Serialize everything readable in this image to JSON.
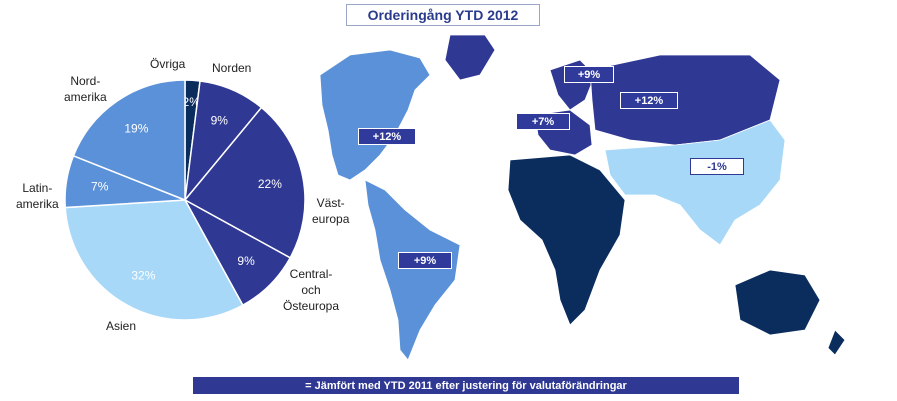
{
  "title": "Orderingång YTD 2012",
  "footer_note": "= Jämfört med YTD 2011 efter justering för valutaförändringar",
  "chart_data": {
    "type": "pie",
    "slices": [
      {
        "label": "Övriga",
        "value": 2,
        "display": "2%",
        "color": "#0b2d5e"
      },
      {
        "label": "Norden",
        "value": 9,
        "display": "9%",
        "color": "#2f3893"
      },
      {
        "label": "Väst-\neuropa",
        "value": 22,
        "display": "22%",
        "color": "#2f3893"
      },
      {
        "label": "Central-\noch\nÖsteuropa",
        "value": 9,
        "display": "9%",
        "color": "#2f3893"
      },
      {
        "label": "Asien",
        "value": 32,
        "display": "32%",
        "color": "#a7d8f8"
      },
      {
        "label": "Latin-\namerika",
        "value": 7,
        "display": "7%",
        "color": "#5a91d8"
      },
      {
        "label": "Nord-\namerika",
        "value": 19,
        "display": "19%",
        "color": "#5a91d8"
      }
    ]
  },
  "map_badges": [
    {
      "region": "north-america",
      "text": "+12%"
    },
    {
      "region": "latin-america",
      "text": "+9%"
    },
    {
      "region": "nordics",
      "text": "+9%"
    },
    {
      "region": "western-europe",
      "text": "+7%"
    },
    {
      "region": "eastern-europe",
      "text": "+12%"
    },
    {
      "region": "asia",
      "text": "-1%"
    }
  ],
  "map_colors": {
    "north_america": "#5a91d8",
    "latin_america": "#5a91d8",
    "europe": "#2f3893",
    "africa": "#0b2d5e",
    "asia": "#a7d8f8",
    "oceania": "#0b2d5e"
  }
}
